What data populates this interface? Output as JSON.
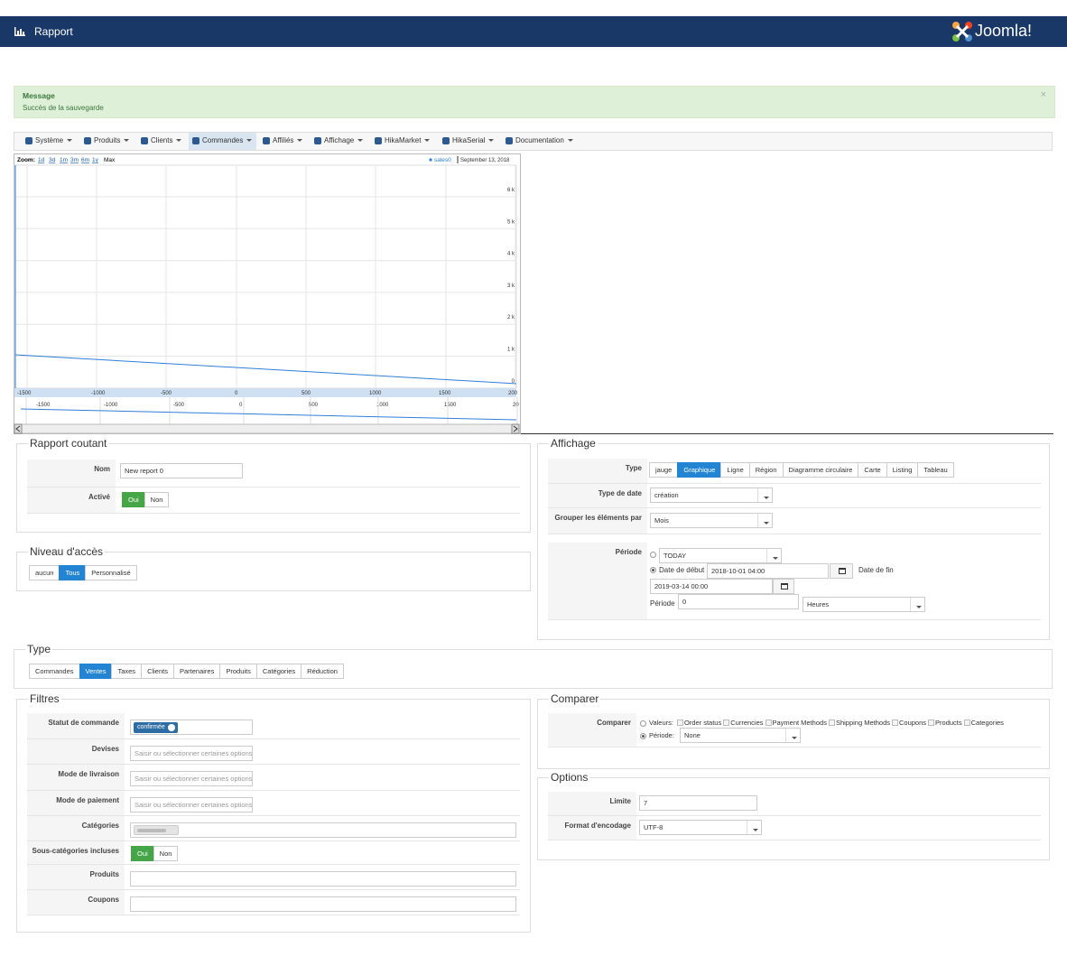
{
  "header": {
    "title": "Rapport",
    "brand": "Joomla!"
  },
  "message": {
    "heading": "Message",
    "text": "Succès de la sauvegarde",
    "close": "×"
  },
  "menu": {
    "items": [
      {
        "label": "Système"
      },
      {
        "label": "Produits"
      },
      {
        "label": "Clients"
      },
      {
        "label": "Commandes",
        "active": true
      },
      {
        "label": "Affiliés"
      },
      {
        "label": "Affichage"
      },
      {
        "label": "HikaMarket"
      },
      {
        "label": "HikaSerial"
      },
      {
        "label": "Documentation"
      }
    ]
  },
  "graph": {
    "zoom_label": "Zoom:",
    "zoom": [
      "1d",
      "3d",
      "1m",
      "3m",
      "6m",
      "1y",
      "Max"
    ],
    "legend": "sales0",
    "date": "September 13, 2018",
    "y_labels": [
      "6 k",
      "5 k",
      "4 k",
      "3 k",
      "2 k",
      "1 k",
      "0"
    ],
    "x_labels": [
      "-1500",
      "-1000",
      "-500",
      "0",
      "500",
      "1000",
      "1500",
      "200"
    ],
    "navigator_labels": [
      "-1500",
      "-1000",
      "-500",
      "0",
      "500",
      "1000",
      "1500",
      "20"
    ]
  },
  "report": {
    "legend": "Rapport coutant",
    "name_label": "Nom",
    "name": "New report 0",
    "active_label": "Activé",
    "active_options": [
      {
        "label": "Oui",
        "active": true
      },
      {
        "label": "Non"
      }
    ]
  },
  "access": {
    "legend": "Niveau d'accès",
    "options": [
      {
        "label": "aucun"
      },
      {
        "label": "Tous",
        "active": true
      },
      {
        "label": "Personnalisé"
      }
    ]
  },
  "display": {
    "legend": "Affichage",
    "type_label": "Type",
    "types": [
      {
        "label": "jauge"
      },
      {
        "label": "Graphique",
        "active": true
      },
      {
        "label": "Ligne"
      },
      {
        "label": "Région"
      },
      {
        "label": "Diagramme circulaire"
      },
      {
        "label": "Carte"
      },
      {
        "label": "Listing"
      },
      {
        "label": "Tableau"
      }
    ],
    "date_type_label": "Type de date",
    "date_type": "création",
    "group_label": "Grouper les éléments par",
    "group": "Mois",
    "period_label": "Période",
    "period_preset": "TODAY",
    "start_label": "Date de début",
    "start": "2018-10-01 04:00",
    "end_label": "Date de fin",
    "end": "2019-03-14 00:00",
    "period_value_label": "Période",
    "period_value": "0",
    "period_unit": "Heures"
  },
  "type": {
    "legend": "Type",
    "options": [
      {
        "label": "Commandes"
      },
      {
        "label": "Ventes",
        "active": true
      },
      {
        "label": "Taxes"
      },
      {
        "label": "Clients"
      },
      {
        "label": "Partenaires"
      },
      {
        "label": "Produits"
      },
      {
        "label": "Catégories"
      },
      {
        "label": "Réduction"
      }
    ]
  },
  "filters": {
    "legend": "Filtres",
    "rows": [
      {
        "label": "Statut de commande",
        "tags": [
          "confirmée"
        ]
      },
      {
        "label": "Devises",
        "placeholder": "Saisir ou sélectionner certaines options"
      },
      {
        "label": "Mode de livraison",
        "placeholder": "Saisir ou sélectionner certaines options"
      },
      {
        "label": "Mode de paiement",
        "placeholder": "Saisir ou sélectionner certaines options"
      },
      {
        "label": "Catégories",
        "input": "wide-tag"
      },
      {
        "label": "Sous-catégories incluses",
        "options": [
          {
            "label": "Oui",
            "active": true
          },
          {
            "label": "Non"
          }
        ]
      },
      {
        "label": "Produits",
        "input": "wide"
      },
      {
        "label": "Coupons",
        "input": "wide"
      }
    ]
  },
  "compare": {
    "legend": "Comparer",
    "label": "Comparer",
    "values_label": "Valeurs:",
    "values": [
      "Order status",
      "Currencies",
      "Payment Methods",
      "Shipping Methods",
      "Coupons",
      "Products",
      "Categories"
    ],
    "period_label": "Période:",
    "period": "None"
  },
  "options": {
    "legend": "Options",
    "limit_label": "Limite",
    "limit": 7,
    "encoding_label": "Format d'encodage",
    "encoding": "UTF-8"
  }
}
